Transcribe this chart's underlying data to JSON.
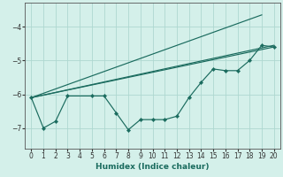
{
  "xlabel": "Humidex (Indice chaleur)",
  "xlim": [
    -0.5,
    20.5
  ],
  "ylim": [
    -7.6,
    -3.3
  ],
  "yticks": [
    -7,
    -6,
    -5,
    -4
  ],
  "xticks": [
    0,
    1,
    2,
    3,
    4,
    5,
    6,
    7,
    8,
    9,
    10,
    11,
    12,
    13,
    14,
    15,
    16,
    17,
    18,
    19,
    20
  ],
  "bg_color": "#d4f0ea",
  "grid_color": "#aed8d0",
  "line_color": "#1a6b5e",
  "line1": {
    "x": [
      0,
      19
    ],
    "y": [
      -6.1,
      -3.65
    ]
  },
  "line2": {
    "x": [
      0,
      20
    ],
    "y": [
      -6.1,
      -4.55
    ]
  },
  "line3": {
    "x": [
      0,
      20
    ],
    "y": [
      -6.1,
      -4.6
    ]
  },
  "zigzag": {
    "x": [
      0,
      1,
      2,
      3,
      5,
      6,
      7,
      8,
      9,
      10,
      11,
      12,
      13,
      14,
      15,
      16,
      17,
      18,
      19,
      20
    ],
    "y": [
      -6.1,
      -7.0,
      -6.8,
      -6.05,
      -6.05,
      -6.05,
      -6.55,
      -7.05,
      -6.75,
      -6.75,
      -6.75,
      -6.65,
      -6.1,
      -5.65,
      -5.25,
      -5.3,
      -5.3,
      -5.0,
      -4.55,
      -4.6
    ]
  },
  "tick_fontsize": 5.5,
  "xlabel_fontsize": 6.5
}
